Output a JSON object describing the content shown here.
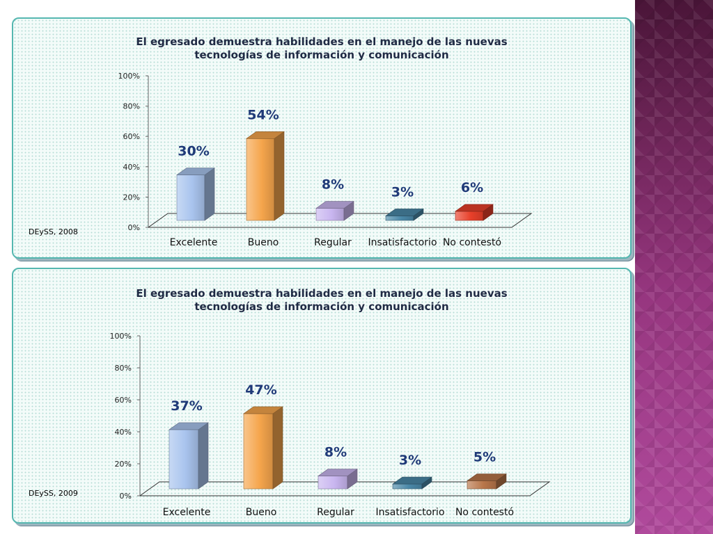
{
  "chart_data": [
    {
      "type": "bar",
      "title": "El egresado demuestra habilidades en el manejo de las nuevas tecnologías de información y comunicación",
      "source": "DEySS, 2008",
      "categories": [
        "Excelente",
        "Bueno",
        "Regular",
        "Insatisfactorio",
        "No contestó"
      ],
      "values": [
        30,
        54,
        8,
        3,
        6
      ],
      "data_labels": [
        "30%",
        "54%",
        "8%",
        "3%",
        "6%"
      ],
      "yticks": [
        "0%",
        "20%",
        "40%",
        "60%",
        "80%",
        "100%"
      ],
      "ylim": [
        0,
        100
      ],
      "colors": [
        "#a9c4ee",
        "#f5a54c",
        "#c9b6f0",
        "#4a88a8",
        "#e8402a"
      ]
    },
    {
      "type": "bar",
      "title": "El egresado demuestra habilidades en el manejo de las nuevas tecnologías de información y comunicación",
      "source": "DEySS, 2009",
      "categories": [
        "Excelente",
        "Bueno",
        "Regular",
        "Insatisfactorio",
        "No contestó"
      ],
      "values": [
        37,
        47,
        8,
        3,
        5
      ],
      "data_labels": [
        "37%",
        "47%",
        "8%",
        "3%",
        "5%"
      ],
      "yticks": [
        "0%",
        "20%",
        "40%",
        "60%",
        "80%",
        "100%"
      ],
      "ylim": [
        0,
        100
      ],
      "colors": [
        "#a9c4ee",
        "#f5a54c",
        "#c9b6f0",
        "#4a88a8",
        "#b8764a"
      ]
    }
  ]
}
